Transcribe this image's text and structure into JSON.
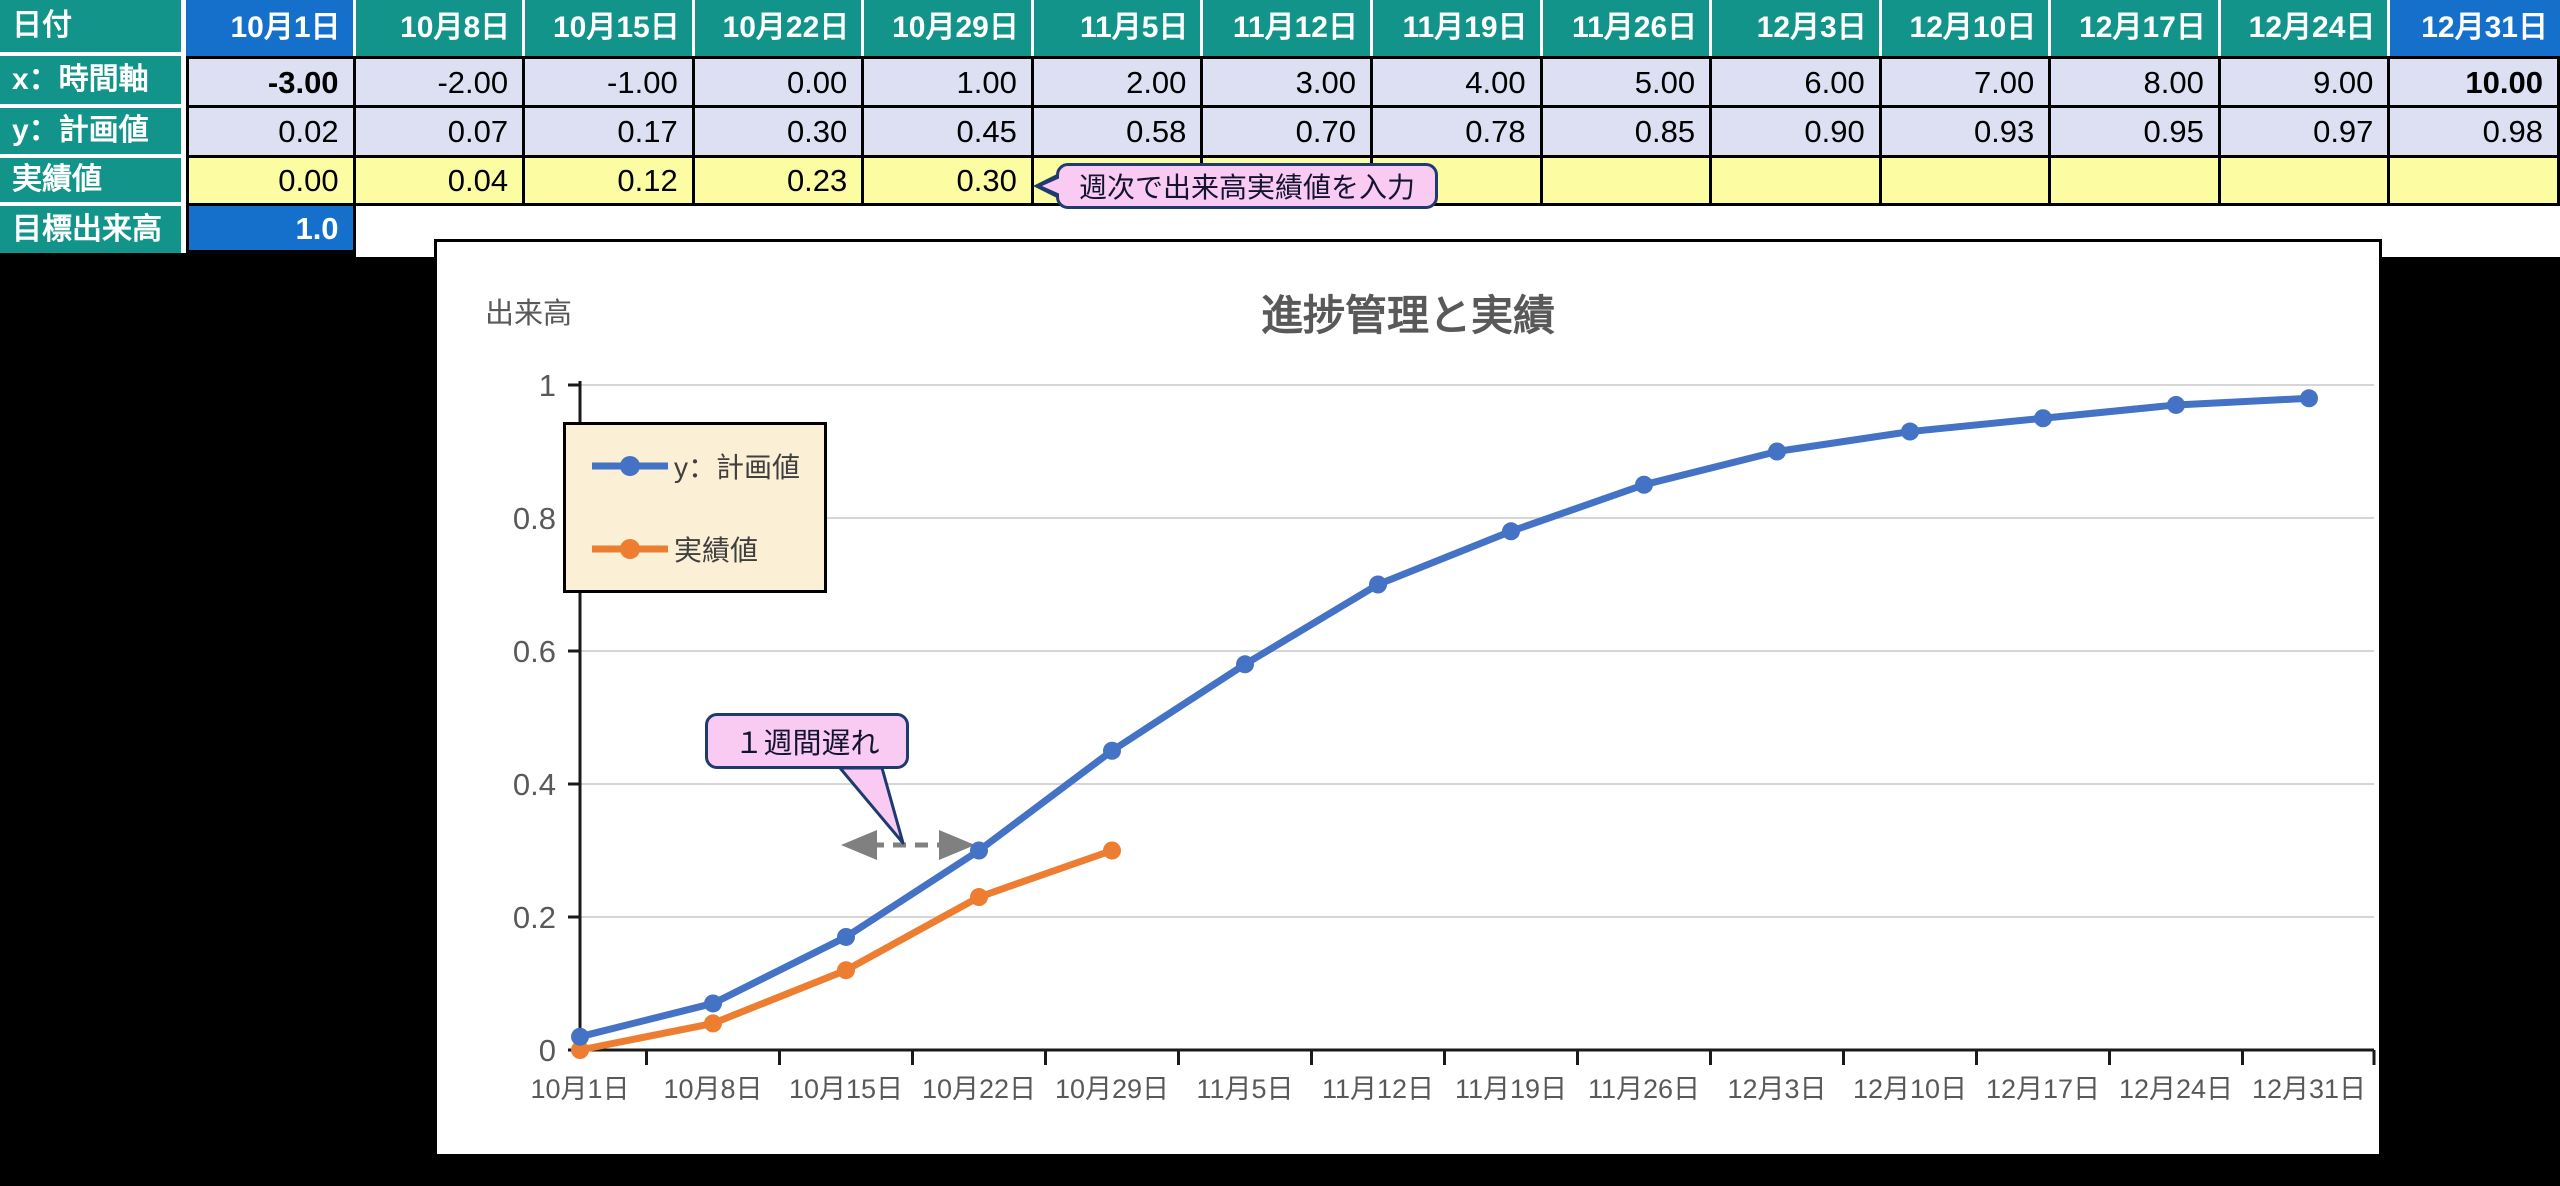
{
  "colors": {
    "teal": "#12948A",
    "header_blue": "#1470CB",
    "cell_lavender": "#DCE0F2",
    "cell_yellow": "#FCFCA3",
    "callout_pink": "#F9CBF3",
    "callout_navy": "#1F3A6E",
    "legend_cream": "#FBEFD5",
    "series_blue": "#4472C4",
    "series_orange": "#ED7D31",
    "gridline": "#D6D6D6",
    "axis": "#1a1a1a",
    "tick_text": "#595959"
  },
  "table": {
    "corner_label": "日付",
    "dates": [
      "10月1日",
      "10月8日",
      "10月15日",
      "10月22日",
      "10月29日",
      "11月5日",
      "11月12日",
      "11月19日",
      "11月26日",
      "12月3日",
      "12月10日",
      "12月17日",
      "12月24日",
      "12月31日"
    ],
    "rows": [
      {
        "label": "x：時間軸",
        "bg": "lavender",
        "bold_first_last": true,
        "values": [
          "-3.00",
          "-2.00",
          "-1.00",
          "0.00",
          "1.00",
          "2.00",
          "3.00",
          "4.00",
          "5.00",
          "6.00",
          "7.00",
          "8.00",
          "9.00",
          "10.00"
        ]
      },
      {
        "label": "y：計画値",
        "bg": "lavender",
        "bold_first_last": false,
        "values": [
          "0.02",
          "0.07",
          "0.17",
          "0.30",
          "0.45",
          "0.58",
          "0.70",
          "0.78",
          "0.85",
          "0.90",
          "0.93",
          "0.95",
          "0.97",
          "0.98"
        ]
      },
      {
        "label": "実績値",
        "bg": "yellow",
        "bold_first_last": false,
        "values": [
          "0.00",
          "0.04",
          "0.12",
          "0.23",
          "0.30",
          "",
          "",
          "",
          "",
          "",
          "",
          "",
          "",
          ""
        ]
      }
    ],
    "target_row": {
      "label": "目標出来高",
      "value": "1.0"
    },
    "input_callout": "週次で出来高実績値を入力"
  },
  "chart_data": {
    "type": "line",
    "title": "進捗管理と実績",
    "ylabel": "出来高",
    "xlabel": "",
    "categories": [
      "10月1日",
      "10月8日",
      "10月15日",
      "10月22日",
      "10月29日",
      "11月5日",
      "11月12日",
      "11月19日",
      "11月26日",
      "12月3日",
      "12月10日",
      "12月17日",
      "12月24日",
      "12月31日"
    ],
    "series": [
      {
        "name": "y：計画値",
        "color": "#4472C4",
        "values": [
          0.02,
          0.07,
          0.17,
          0.3,
          0.45,
          0.58,
          0.7,
          0.78,
          0.85,
          0.9,
          0.93,
          0.95,
          0.97,
          0.98
        ]
      },
      {
        "name": "実績値",
        "color": "#ED7D31",
        "values": [
          0.0,
          0.04,
          0.12,
          0.23,
          0.3
        ]
      }
    ],
    "ylim": [
      0,
      1
    ],
    "yticks": [
      0,
      0.2,
      0.4,
      0.6,
      0.8,
      1
    ],
    "ytick_labels": [
      "0",
      "0.2",
      "0.4",
      "0.6",
      "0.8",
      "1"
    ],
    "grid": true,
    "legend_position": "upper-left",
    "annotation": "１週間遅れ"
  }
}
